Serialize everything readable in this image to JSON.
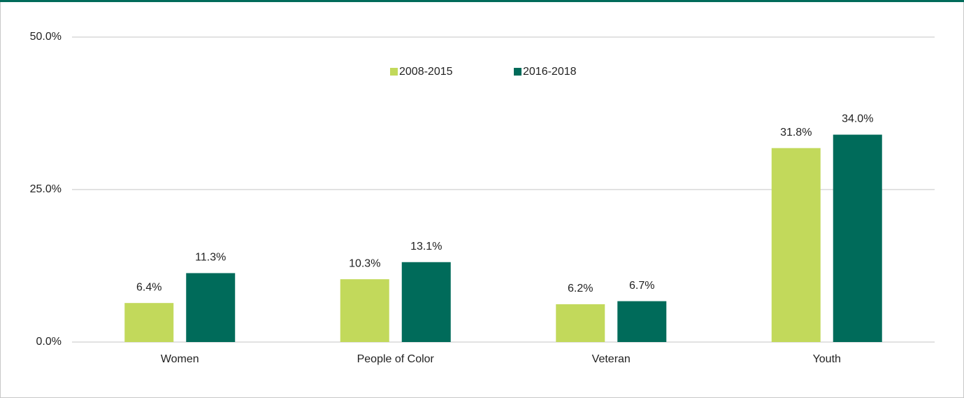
{
  "chart_data": {
    "type": "bar",
    "categories": [
      "Women",
      "People of Color",
      "Veteran",
      "Youth"
    ],
    "series": [
      {
        "name": "2008-2015",
        "color": "#c2d95b",
        "values": [
          6.4,
          10.3,
          6.2,
          31.8
        ],
        "value_labels": [
          "6.4%",
          "10.3%",
          "6.2%",
          "31.8%"
        ]
      },
      {
        "name": "2016-2018",
        "color": "#006b5a",
        "values": [
          11.3,
          13.1,
          6.7,
          34.0
        ],
        "value_labels": [
          "11.3%",
          "13.1%",
          "6.7%",
          "34.0%"
        ]
      }
    ],
    "ylim": [
      0,
      50
    ],
    "yticks": [
      {
        "value": 0,
        "label": "0.0%"
      },
      {
        "value": 25,
        "label": "25.0%"
      },
      {
        "value": 50,
        "label": "50.0%"
      }
    ],
    "grid": true,
    "legend": "top"
  }
}
